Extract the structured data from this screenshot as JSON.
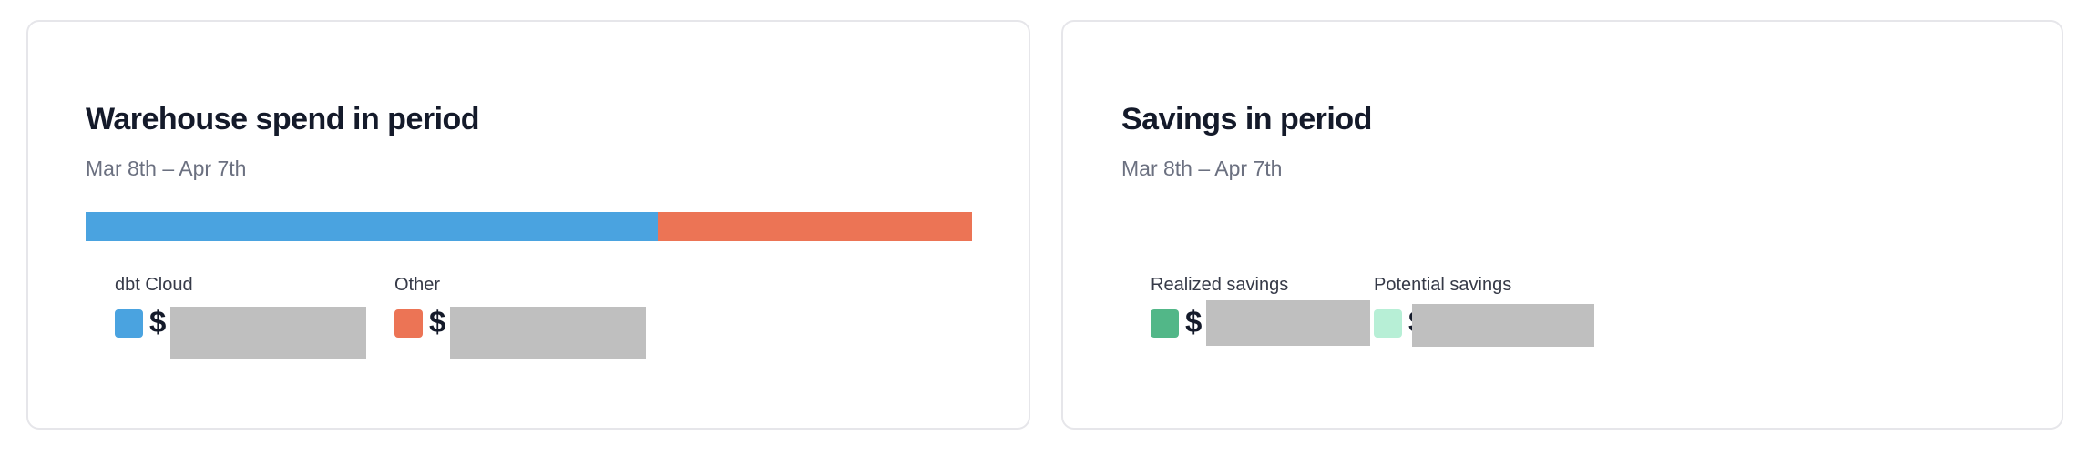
{
  "warehouse_card": {
    "title": "Warehouse spend in period",
    "subtitle": "Mar 8th – Apr 7th",
    "bar": [
      {
        "label": "dbt Cloud",
        "share_pct": 64.5,
        "color": "#4aa3e0"
      },
      {
        "label": "Other",
        "share_pct": 35.5,
        "color": "#ec7455"
      }
    ],
    "legend": [
      {
        "label": "dbt Cloud",
        "currency": "$",
        "color": "#4aa3e0",
        "value_redacted": true
      },
      {
        "label": "Other",
        "currency": "$",
        "color": "#ec7455",
        "value_redacted": true
      }
    ]
  },
  "savings_card": {
    "title": "Savings in period",
    "subtitle": "Mar 8th – Apr 7th",
    "legend": [
      {
        "label": "Realized savings",
        "currency": "$",
        "color": "#52b788",
        "value_redacted": true
      },
      {
        "label": "Potential savings",
        "currency": "$",
        "color": "#b7efd6",
        "value_redacted": true
      }
    ]
  }
}
